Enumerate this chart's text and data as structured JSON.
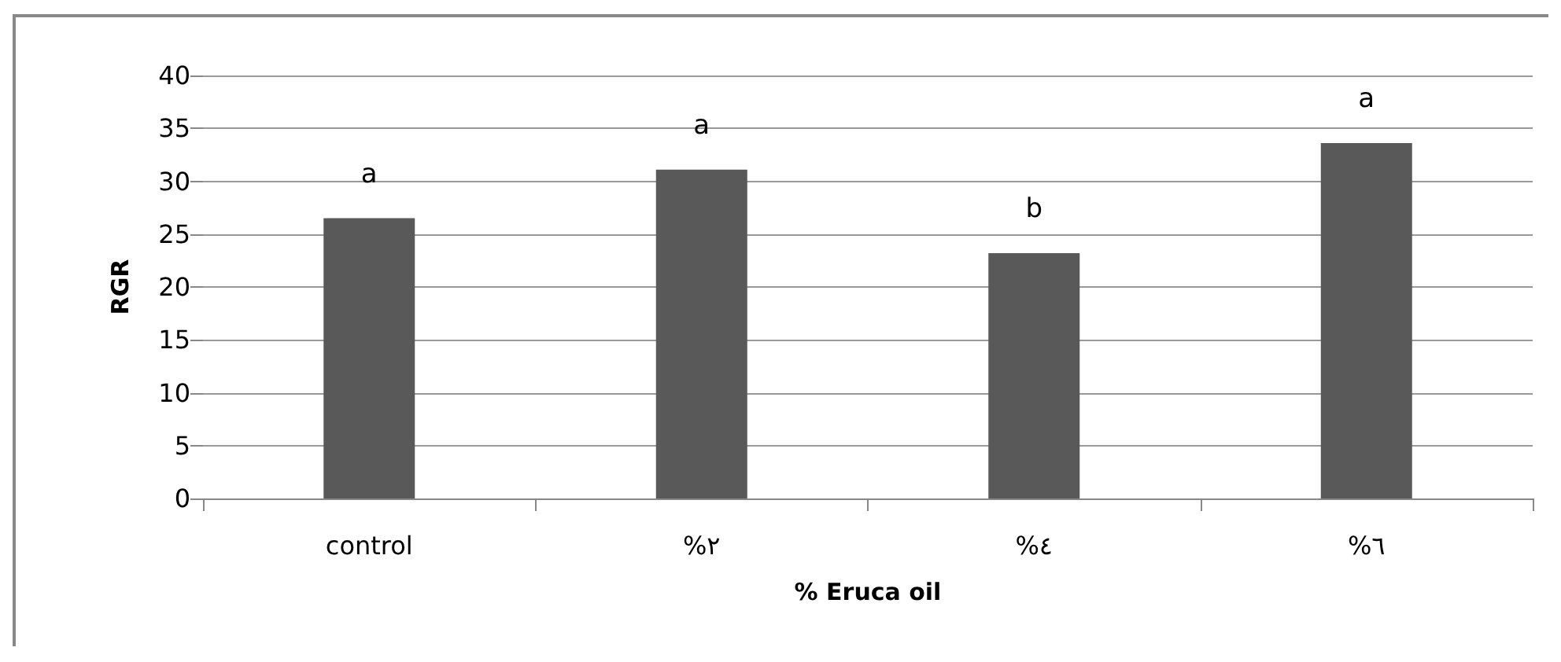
{
  "chart_data": {
    "type": "bar",
    "xlabel": "% Eruca oil",
    "ylabel": "RGR",
    "categories": [
      "control",
      "%٢",
      "%٤",
      "%٦"
    ],
    "values": [
      26.5,
      31.1,
      23.2,
      33.6
    ],
    "color": "#595959",
    "ylim": [
      0,
      40
    ],
    "yticks": [
      0,
      5,
      10,
      15,
      20,
      25,
      30,
      35,
      40
    ],
    "grid": "y",
    "annotations": [
      "a",
      "a",
      "b",
      "a"
    ]
  }
}
